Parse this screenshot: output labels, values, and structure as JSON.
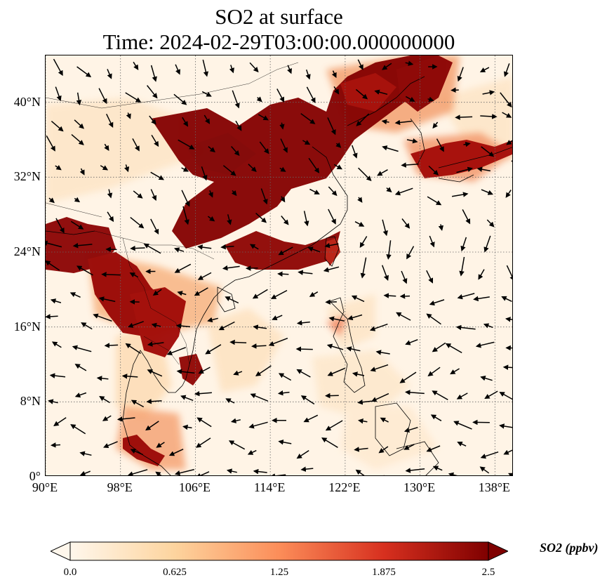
{
  "title": {
    "line1": "SO2 at surface",
    "line2": "Time: 2024-02-29T03:00:00.000000000"
  },
  "map": {
    "lon_range": [
      90,
      140
    ],
    "lat_range": [
      0,
      45
    ],
    "lat_ticks": [
      {
        "value": 40,
        "label": "40°N"
      },
      {
        "value": 32,
        "label": "32°N"
      },
      {
        "value": 24,
        "label": "24°N"
      },
      {
        "value": 16,
        "label": "16°N"
      },
      {
        "value": 8,
        "label": "8°N"
      },
      {
        "value": 0,
        "label": "0°"
      }
    ],
    "lon_ticks": [
      {
        "value": 90,
        "label": "90°E"
      },
      {
        "value": 98,
        "label": "98°E"
      },
      {
        "value": 106,
        "label": "106°E"
      },
      {
        "value": 114,
        "label": "114°E"
      },
      {
        "value": 122,
        "label": "122°E"
      },
      {
        "value": 130,
        "label": "130°E"
      },
      {
        "value": 138,
        "label": "138°E"
      }
    ],
    "gridlines": "dotted",
    "background_color": "#fff4e6",
    "vectors": "wind arrows"
  },
  "colorbar": {
    "label": "SO2 (ppbv)",
    "ticks": [
      "0.0",
      "0.625",
      "1.25",
      "1.875",
      "2.5"
    ],
    "min": 0,
    "max": 2.5,
    "colormap": "OrRd",
    "colors": [
      "#fff7ec",
      "#fdd49e",
      "#fc8d59",
      "#d7301f",
      "#7f0000"
    ],
    "extend": "both"
  }
}
